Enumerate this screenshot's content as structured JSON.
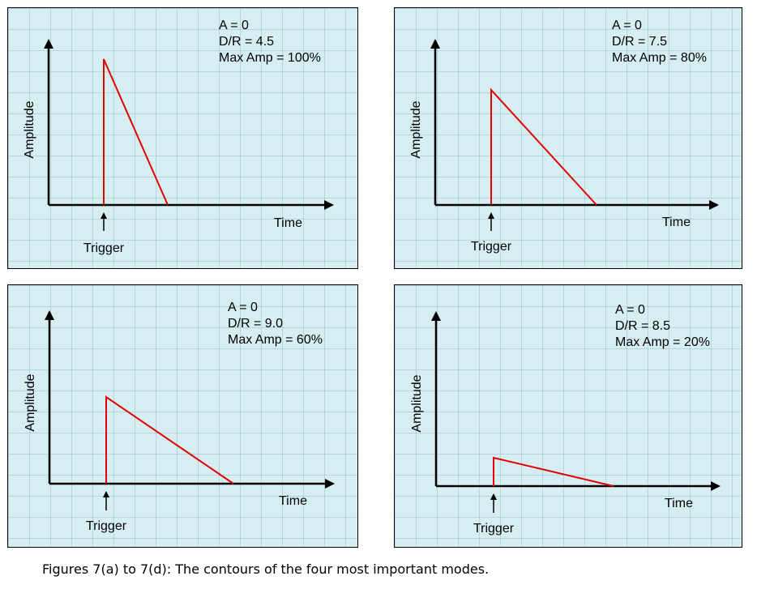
{
  "panels": [
    {
      "id": "7a",
      "params": {
        "a": "A = 0",
        "dr": "D/R = 4.5",
        "max_amp": "Max Amp = 100%"
      },
      "ylabel": "Amplitude",
      "xlabel": "Time",
      "marker_label": "Trigger"
    },
    {
      "id": "7b",
      "params": {
        "a": "A = 0",
        "dr": "D/R = 7.5",
        "max_amp": "Max Amp = 80%"
      },
      "ylabel": "Amplitude",
      "xlabel": "Time",
      "marker_label": "Trigger"
    },
    {
      "id": "7c",
      "params": {
        "a": "A = 0",
        "dr": "D/R = 9.0",
        "max_amp": "Max Amp = 60%"
      },
      "ylabel": "Amplitude",
      "xlabel": "Time",
      "marker_label": "Trigger"
    },
    {
      "id": "7d",
      "params": {
        "a": "A = 0",
        "dr": "D/R = 8.5",
        "max_amp": "Max Amp = 20%"
      },
      "ylabel": "Amplitude",
      "xlabel": "Time",
      "marker_label": "Trigger"
    }
  ],
  "caption": "Figures 7(a) to 7(d): The contours of the four most important modes.",
  "colors": {
    "panel_background": "#d6eef2",
    "contour": "#e00000",
    "axis": "#000000"
  }
}
